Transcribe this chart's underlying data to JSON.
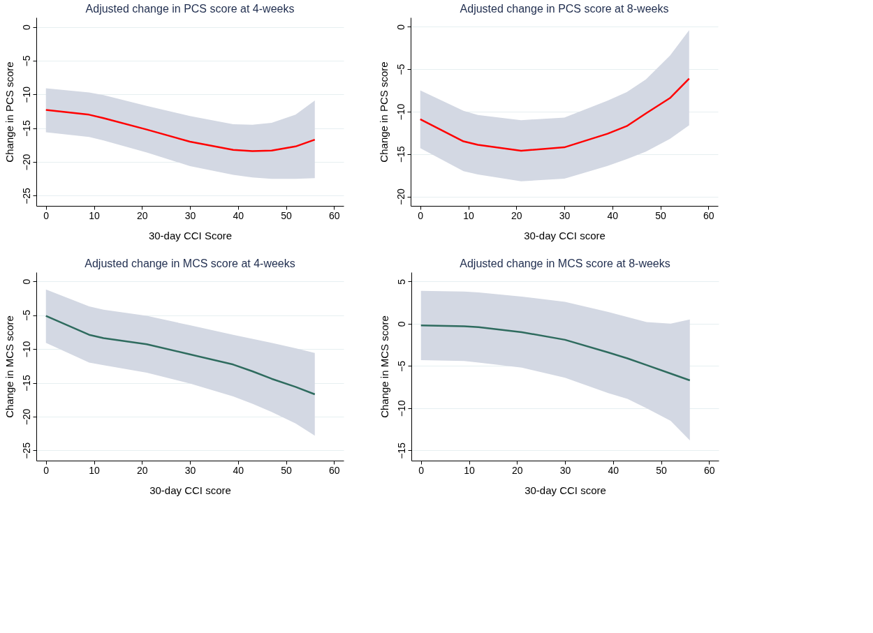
{
  "chart_data": [
    {
      "type": "line",
      "title": "Adjusted change in PCS score at 4-weeks",
      "xlabel": "30-day CCI Score",
      "ylabel": "Change in PCS score",
      "xlim": [
        -2,
        62
      ],
      "xticks": [
        0,
        10,
        20,
        30,
        40,
        50,
        60
      ],
      "ylim": [
        -26.5,
        1.4
      ],
      "yticks": [
        0,
        -5,
        -10,
        -15,
        -20,
        -25
      ],
      "grid": "y",
      "x": [
        0,
        9,
        12,
        21,
        30,
        39,
        43,
        47,
        52,
        56
      ],
      "series": [
        {
          "color": "#ff0000",
          "values": [
            -12.3,
            -13.0,
            -13.5,
            -15.2,
            -17.0,
            -18.2,
            -18.4,
            -18.3,
            -17.7,
            -16.7
          ],
          "upper": [
            -9.1,
            -9.7,
            -10.1,
            -11.7,
            -13.2,
            -14.4,
            -14.5,
            -14.2,
            -13.0,
            -10.9
          ],
          "lower": [
            -15.6,
            -16.3,
            -16.8,
            -18.6,
            -20.6,
            -21.9,
            -22.3,
            -22.5,
            -22.5,
            -22.4
          ]
        }
      ]
    },
    {
      "type": "line",
      "title": "Adjusted change in PCS score at 8-weeks",
      "xlabel": "30-day CCI score",
      "ylabel": "Change in PCS score",
      "xlim": [
        -2,
        62
      ],
      "xticks": [
        0,
        10,
        20,
        30,
        40,
        50,
        60
      ],
      "ylim": [
        -21.1,
        1.1
      ],
      "yticks": [
        0,
        -5,
        -10,
        -15,
        -20
      ],
      "grid": "y",
      "x": [
        0,
        9,
        12,
        21,
        30,
        39,
        43,
        47,
        52,
        56
      ],
      "series": [
        {
          "color": "#ff0000",
          "values": [
            -10.9,
            -13.5,
            -13.9,
            -14.6,
            -14.2,
            -12.6,
            -11.7,
            -10.2,
            -8.4,
            -6.1
          ],
          "upper": [
            -7.5,
            -9.9,
            -10.4,
            -11.0,
            -10.7,
            -8.7,
            -7.7,
            -6.2,
            -3.4,
            -0.4
          ],
          "lower": [
            -14.3,
            -17.0,
            -17.4,
            -18.2,
            -17.9,
            -16.4,
            -15.6,
            -14.7,
            -13.2,
            -11.6
          ]
        }
      ]
    },
    {
      "type": "line",
      "title": "Adjusted change in MCS score at 4-weeks",
      "xlabel": "30-day CCI score",
      "ylabel": "Change in MCS score",
      "xlim": [
        -2,
        62
      ],
      "xticks": [
        0,
        10,
        20,
        30,
        40,
        50,
        60
      ],
      "ylim": [
        -26.5,
        1.35
      ],
      "yticks": [
        0,
        -5,
        -10,
        -15,
        -20,
        -25
      ],
      "grid": "y",
      "x": [
        0,
        9,
        12,
        21,
        30,
        39,
        43,
        47,
        52,
        56
      ],
      "series": [
        {
          "color": "#2e6b5e",
          "values": [
            -5.1,
            -7.9,
            -8.4,
            -9.3,
            -10.8,
            -12.3,
            -13.3,
            -14.4,
            -15.6,
            -16.7
          ],
          "upper": [
            -1.2,
            -3.7,
            -4.2,
            -5.1,
            -6.5,
            -7.9,
            -8.5,
            -9.1,
            -9.9,
            -10.6
          ],
          "lower": [
            -9.1,
            -12.0,
            -12.4,
            -13.5,
            -15.1,
            -17.0,
            -18.1,
            -19.3,
            -21.0,
            -22.8
          ]
        }
      ]
    },
    {
      "type": "line",
      "title": "Adjusted change in MCS score at 8-weeks",
      "xlabel": "30-day CCI score",
      "ylabel": "Change in MCS score",
      "xlim": [
        -2,
        62
      ],
      "xticks": [
        0,
        10,
        20,
        30,
        40,
        50,
        60
      ],
      "ylim": [
        -16.2,
        6.1
      ],
      "yticks": [
        5,
        0,
        -5,
        -10,
        -15
      ],
      "grid": "y",
      "x": [
        0,
        9,
        12,
        21,
        30,
        39,
        43,
        47,
        52,
        56
      ],
      "series": [
        {
          "color": "#2e6b5e",
          "values": [
            -0.2,
            -0.3,
            -0.4,
            -1.0,
            -1.9,
            -3.4,
            -4.1,
            -4.9,
            -5.9,
            -6.7
          ],
          "upper": [
            3.9,
            3.8,
            3.7,
            3.2,
            2.6,
            1.4,
            0.8,
            0.2,
            0.0,
            0.5
          ],
          "lower": [
            -4.3,
            -4.4,
            -4.6,
            -5.2,
            -6.4,
            -8.2,
            -8.9,
            -10.0,
            -11.5,
            -13.8
          ]
        }
      ]
    }
  ]
}
